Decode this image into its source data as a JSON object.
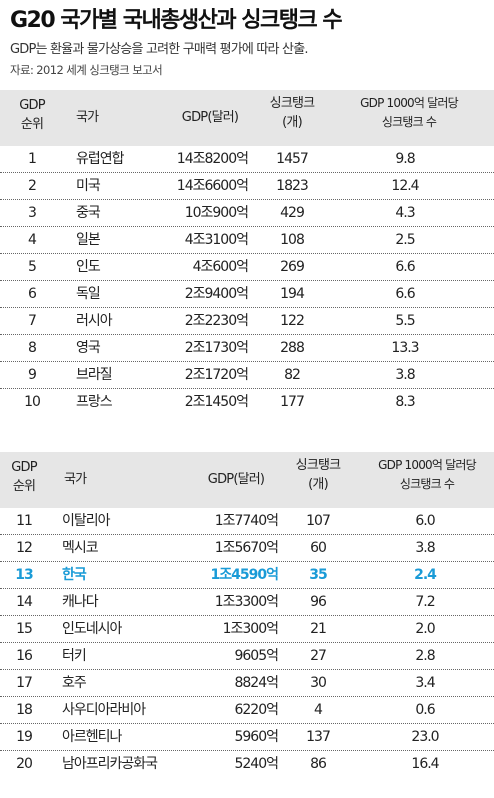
{
  "title": "G20 국가별 국내총생산과 싱크탱크 수",
  "subtitle": "GDP는 환율과 물가상승을 고려한 구매력 평가에 따라 산출.",
  "source": "자료: 2012 세계 싱크탱크 보고서",
  "headers": {
    "rank_line1": "GDP",
    "rank_line2": "순위",
    "country": "국가",
    "gdp": "GDP(달러)",
    "tanks_line1": "싱크탱크",
    "tanks_line2": "(개)",
    "ratio_line1": "GDP 1000억 달러당",
    "ratio_line2": "싱크탱크 수"
  },
  "table1": [
    {
      "rank": "1",
      "country": "유럽연합",
      "gdp": "14조8200억",
      "tanks": "1457",
      "ratio": "9.8"
    },
    {
      "rank": "2",
      "country": "미국",
      "gdp": "14조6600억",
      "tanks": "1823",
      "ratio": "12.4"
    },
    {
      "rank": "3",
      "country": "중국",
      "gdp": "10조900억",
      "tanks": "429",
      "ratio": "4.3"
    },
    {
      "rank": "4",
      "country": "일본",
      "gdp": "4조3100억",
      "tanks": "108",
      "ratio": "2.5"
    },
    {
      "rank": "5",
      "country": "인도",
      "gdp": "4조600억",
      "tanks": "269",
      "ratio": "6.6"
    },
    {
      "rank": "6",
      "country": "독일",
      "gdp": "2조9400억",
      "tanks": "194",
      "ratio": "6.6"
    },
    {
      "rank": "7",
      "country": "러시아",
      "gdp": "2조2230억",
      "tanks": "122",
      "ratio": "5.5"
    },
    {
      "rank": "8",
      "country": "영국",
      "gdp": "2조1730억",
      "tanks": "288",
      "ratio": "13.3"
    },
    {
      "rank": "9",
      "country": "브라질",
      "gdp": "2조1720억",
      "tanks": "82",
      "ratio": "3.8"
    },
    {
      "rank": "10",
      "country": "프랑스",
      "gdp": "2조1450억",
      "tanks": "177",
      "ratio": "8.3"
    }
  ],
  "table2": [
    {
      "rank": "11",
      "country": "이탈리아",
      "gdp": "1조7740억",
      "tanks": "107",
      "ratio": "6.0"
    },
    {
      "rank": "12",
      "country": "멕시코",
      "gdp": "1조5670억",
      "tanks": "60",
      "ratio": "3.8"
    },
    {
      "rank": "13",
      "country": "한국",
      "gdp": "1조4590억",
      "tanks": "35",
      "ratio": "2.4"
    },
    {
      "rank": "14",
      "country": "캐나다",
      "gdp": "1조3300억",
      "tanks": "96",
      "ratio": "7.2"
    },
    {
      "rank": "15",
      "country": "인도네시아",
      "gdp": "1조300억",
      "tanks": "21",
      "ratio": "2.0"
    },
    {
      "rank": "16",
      "country": "터키",
      "gdp": "9605억",
      "tanks": "27",
      "ratio": "2.8"
    },
    {
      "rank": "17",
      "country": "호주",
      "gdp": "8824억",
      "tanks": "30",
      "ratio": "3.4"
    },
    {
      "rank": "18",
      "country": "사우디아라비아",
      "gdp": "6220억",
      "tanks": "4",
      "ratio": "0.6"
    },
    {
      "rank": "19",
      "country": "아르헨티나",
      "gdp": "5960억",
      "tanks": "137",
      "ratio": "23.0"
    },
    {
      "rank": "20",
      "country": "남아프리카공화국",
      "gdp": "5240억",
      "tanks": "86",
      "ratio": "16.4"
    }
  ],
  "highlight_rank": "13",
  "colors": {
    "highlight": "#1a9bd7",
    "header_bg": "#e6e6e6"
  }
}
